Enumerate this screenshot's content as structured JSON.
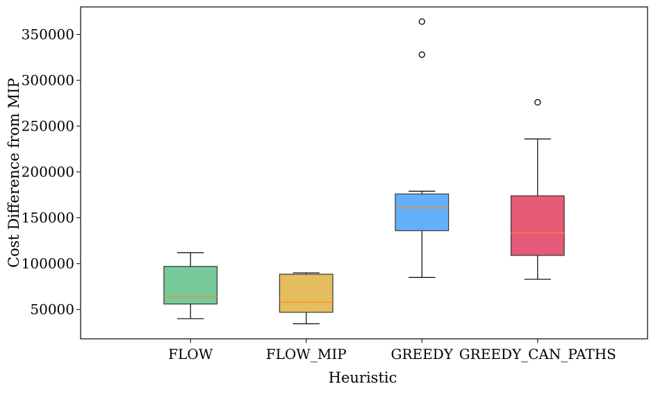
{
  "chart_data": {
    "type": "box",
    "xlabel": "Heuristic",
    "ylabel": "Cost Difference from MIP",
    "ylim": [
      18000,
      380000
    ],
    "yticks": [
      {
        "value": 50000,
        "label": "50000"
      },
      {
        "value": 100000,
        "label": "100000"
      },
      {
        "value": 150000,
        "label": "150000"
      },
      {
        "value": 200000,
        "label": "200000"
      },
      {
        "value": 250000,
        "label": "250000"
      },
      {
        "value": 300000,
        "label": "300000"
      },
      {
        "value": 350000,
        "label": "350000"
      }
    ],
    "median_color": "#ff8c1a",
    "categories": [
      {
        "name": "FLOW",
        "color": "#77c99b",
        "whisker_low": 40000,
        "q1": 56000,
        "median": 64000,
        "q3": 97000,
        "whisker_high": 112000,
        "outliers": []
      },
      {
        "name": "FLOW_MIP",
        "color": "#e5bd5e",
        "whisker_low": 34500,
        "q1": 47000,
        "median": 58000,
        "q3": 88500,
        "whisker_high": 90000,
        "outliers": []
      },
      {
        "name": "GREEDY",
        "color": "#63b1fb",
        "whisker_low": 85000,
        "q1": 136000,
        "median": 161000,
        "q3": 176000,
        "whisker_high": 179000,
        "outliers": [
          328000,
          364000
        ]
      },
      {
        "name": "GREEDY_CAN_PATHS",
        "color": "#e55a76",
        "whisker_low": 83000,
        "q1": 109000,
        "median": 133500,
        "q3": 174000,
        "whisker_high": 236000,
        "outliers": [
          276000
        ]
      }
    ]
  }
}
